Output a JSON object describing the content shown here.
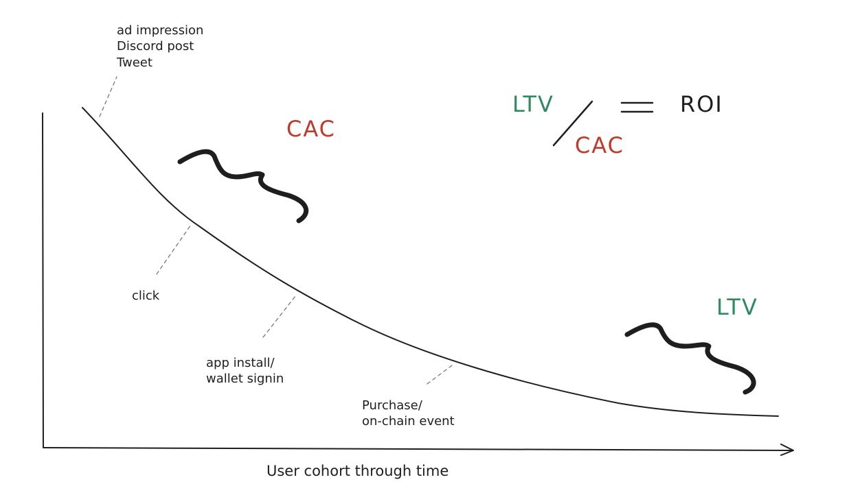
{
  "colors": {
    "ltv": "#2f8a5f",
    "cac": "#c0392b",
    "ink": "#1e1e1e"
  },
  "labels": {
    "top_channels": [
      "ad impression",
      "Discord post",
      "Tweet"
    ],
    "click": "click",
    "install": [
      "app install/",
      "wallet signin"
    ],
    "purchase": [
      "Purchase/",
      "on-chain event"
    ],
    "x_axis": "User cohort through time",
    "cac_region": "CAC",
    "ltv_region": "LTV"
  },
  "formula": {
    "numerator": "LTV",
    "denominator": "CAC",
    "equals": "=",
    "result": "ROI"
  }
}
